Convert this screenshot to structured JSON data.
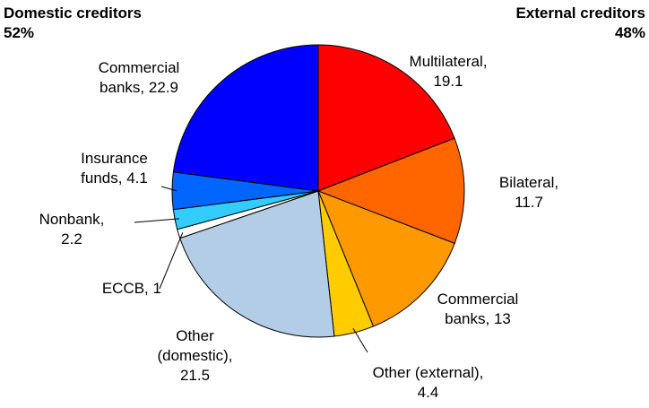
{
  "chart_data": {
    "type": "pie",
    "groups": [
      {
        "name": "Domestic creditors",
        "share": "52%"
      },
      {
        "name": "External creditors",
        "share": "48%"
      }
    ],
    "categories": [
      "Multilateral,",
      "Bilateral,",
      "Commercial banks,",
      "Other (external),",
      "Other (domestic),",
      "ECCB,",
      "Nonbank,",
      "Insurance funds,",
      "Commercial banks,"
    ],
    "values": [
      19.1,
      11.7,
      13.0,
      4.4,
      21.5,
      1.0,
      2.2,
      4.1,
      22.9
    ],
    "colors": [
      "#ff0000",
      "#ff6600",
      "#ff9900",
      "#ffcc00",
      "#b3cde6",
      "#ffffff",
      "#33ccff",
      "#0066ff",
      "#0000ff"
    ]
  }
}
